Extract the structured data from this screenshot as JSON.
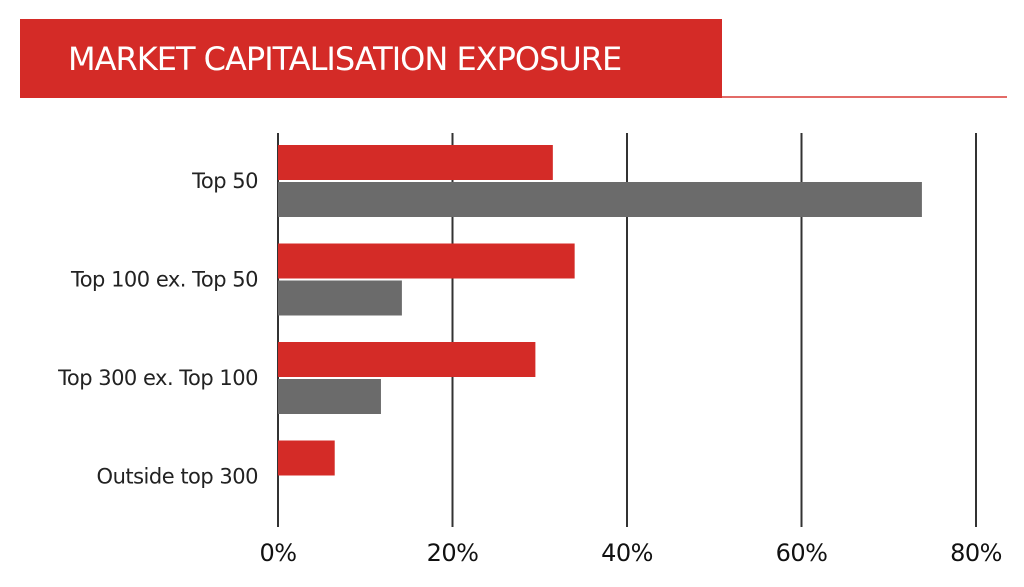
{
  "title": "MARKET CAPITALISATION EXPOSURE",
  "colors": {
    "banner": "#d42b27",
    "series_red": "#d42b27",
    "series_grey": "#6b6b6b",
    "gridline": "#333333"
  },
  "chart_data": {
    "type": "bar",
    "orientation": "horizontal",
    "categories": [
      "Top 50",
      "Top 100 ex. Top 50",
      "Top 300 ex. Top 100",
      "Outside top 300"
    ],
    "series": [
      {
        "values": [
          31.5,
          34,
          29.5,
          6.5
        ],
        "color": "#d42b27"
      },
      {
        "values": [
          73.8,
          14.2,
          11.8,
          0
        ],
        "color": "#6b6b6b"
      }
    ],
    "xlim": [
      0,
      80
    ],
    "xticks": [
      0,
      20,
      40,
      60,
      80
    ],
    "xtick_labels": [
      "0%",
      "20%",
      "40%",
      "60%",
      "80%"
    ],
    "grid": true,
    "legend": "none"
  }
}
